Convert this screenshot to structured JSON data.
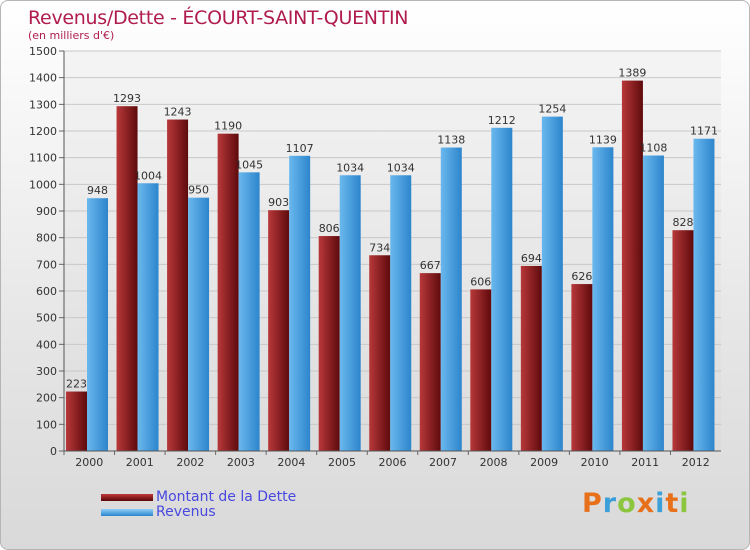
{
  "chart_data": {
    "type": "bar",
    "title": "Revenus/Dette - ÉCOURT-SAINT-QUENTIN",
    "subtitle": "(en milliers d'€)",
    "categories": [
      "2000",
      "2001",
      "2002",
      "2003",
      "2004",
      "2005",
      "2006",
      "2007",
      "2008",
      "2009",
      "2010",
      "2011",
      "2012"
    ],
    "series": [
      {
        "name": "Montant de la Dette",
        "color": "#7a1416",
        "values": [
          223,
          1293,
          1243,
          1190,
          903,
          806,
          734,
          667,
          606,
          694,
          626,
          1389,
          828
        ]
      },
      {
        "name": "Revenus",
        "color": "#3d9be0",
        "values": [
          948,
          1004,
          950,
          1045,
          1107,
          1034,
          1034,
          1138,
          1212,
          1254,
          1139,
          1108,
          1171
        ]
      }
    ],
    "yticks": [
      0,
      100,
      200,
      300,
      400,
      500,
      600,
      700,
      800,
      900,
      1000,
      1100,
      1200,
      1300,
      1400,
      1500
    ],
    "ylim": [
      0,
      1500
    ],
    "grid": true,
    "legend_position": "bottom-left"
  },
  "brand": {
    "logo_letters": [
      "P",
      "r",
      "o",
      "x",
      "i",
      "t",
      "i"
    ],
    "logo_colors": [
      "#e8701a",
      "#3b9fd9",
      "#8cc63f",
      "#e8701a",
      "#3b9fd9",
      "#e8701a",
      "#8cc63f"
    ]
  }
}
